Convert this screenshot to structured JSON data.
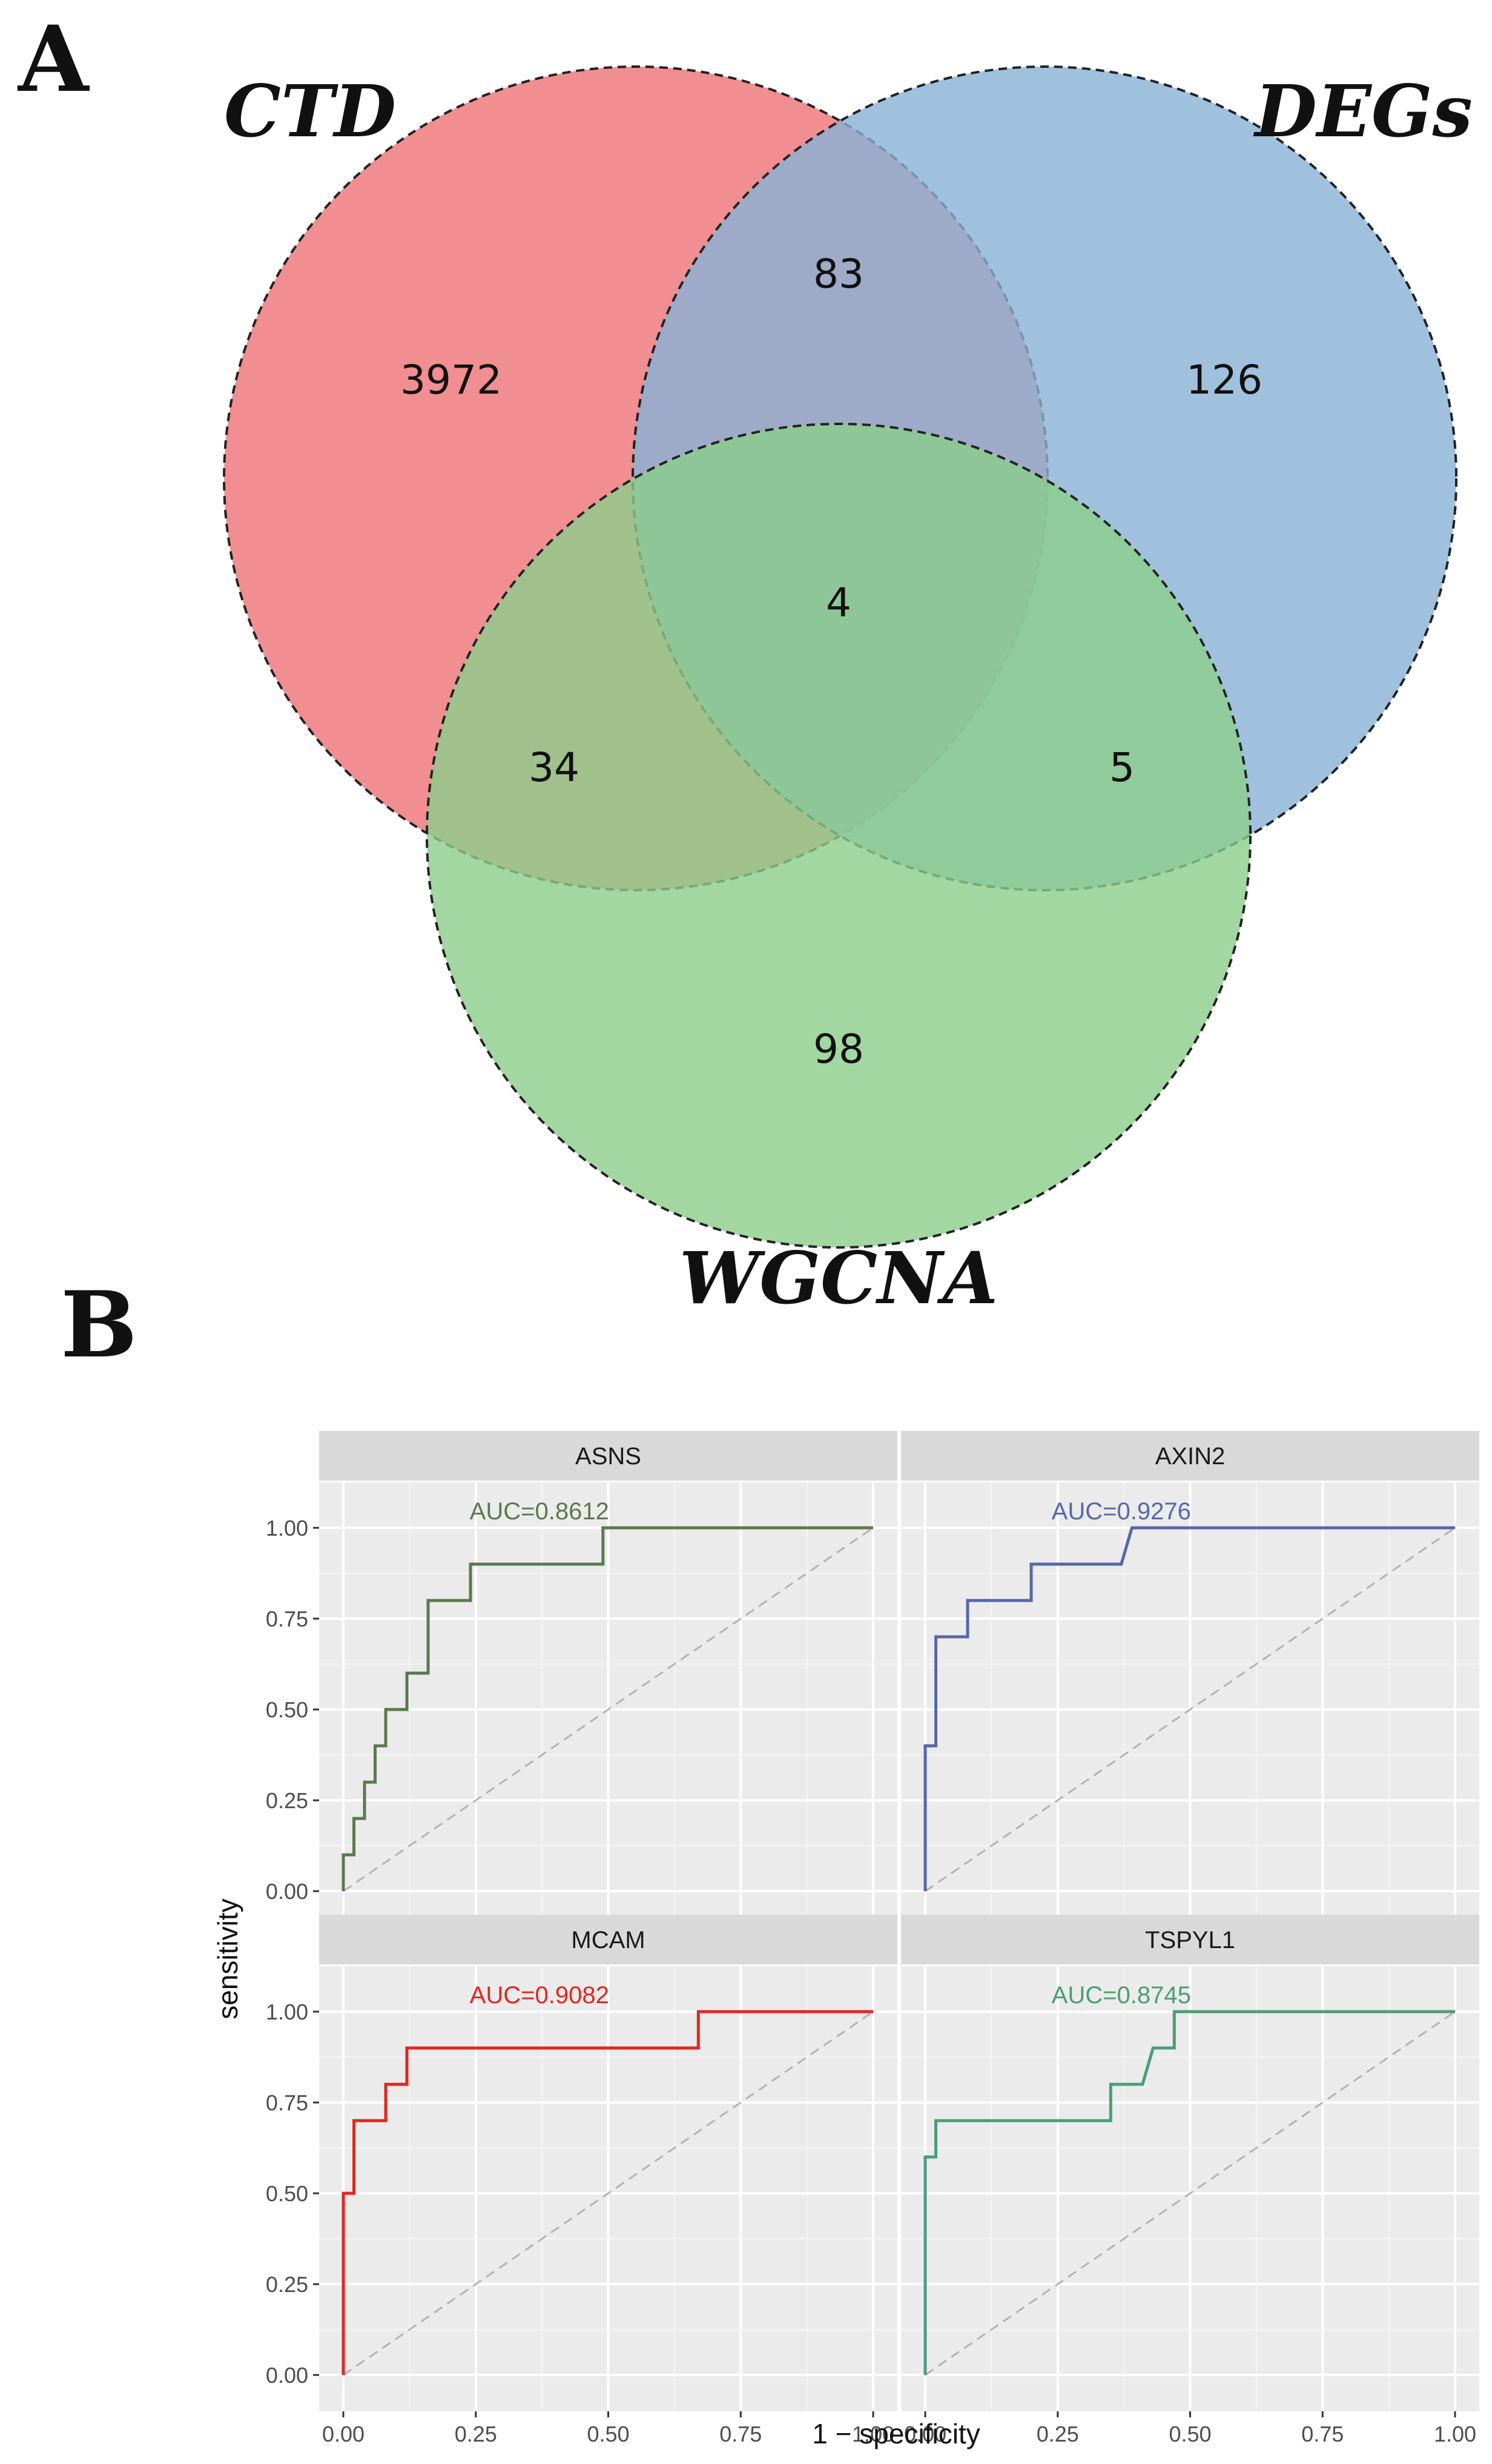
{
  "panel_labels": {
    "a": "A",
    "b": "B"
  },
  "chart_data": [
    {
      "type": "venn",
      "sets": [
        {
          "name": "CTD",
          "color": "#ee7276"
        },
        {
          "name": "DEGs",
          "color": "#88b2d6"
        },
        {
          "name": "WGCNA",
          "color": "#8ccd8b"
        }
      ],
      "regions": [
        {
          "sets": [
            "CTD"
          ],
          "count": "3972"
        },
        {
          "sets": [
            "CTD",
            "DEGs"
          ],
          "count": "83"
        },
        {
          "sets": [
            "DEGs"
          ],
          "count": "126"
        },
        {
          "sets": [
            "CTD",
            "DEGs",
            "WGCNA"
          ],
          "count": "4"
        },
        {
          "sets": [
            "CTD",
            "WGCNA"
          ],
          "count": "34"
        },
        {
          "sets": [
            "DEGs",
            "WGCNA"
          ],
          "count": "5"
        },
        {
          "sets": [
            "WGCNA"
          ],
          "count": "98"
        }
      ]
    },
    {
      "type": "line",
      "subtype": "roc-facets",
      "xlabel": "1 − specificity",
      "ylabel": "sensitivity",
      "xlim": [
        0,
        1
      ],
      "ylim": [
        0,
        1
      ],
      "xticks": [
        "0.00",
        "0.25",
        "0.50",
        "0.75",
        "1.00"
      ],
      "yticks": [
        "0.00",
        "0.25",
        "0.50",
        "0.75",
        "1.00"
      ],
      "reference_line": "diagonal dashed",
      "facets": [
        {
          "name": "ASNS",
          "auc": "AUC=0.8612",
          "color": "#5a7a4e",
          "points": [
            [
              0,
              0
            ],
            [
              0,
              0.1
            ],
            [
              0.02,
              0.1
            ],
            [
              0.02,
              0.2
            ],
            [
              0.04,
              0.2
            ],
            [
              0.04,
              0.3
            ],
            [
              0.06,
              0.3
            ],
            [
              0.06,
              0.4
            ],
            [
              0.08,
              0.4
            ],
            [
              0.08,
              0.5
            ],
            [
              0.12,
              0.5
            ],
            [
              0.12,
              0.6
            ],
            [
              0.16,
              0.6
            ],
            [
              0.16,
              0.8
            ],
            [
              0.24,
              0.8
            ],
            [
              0.24,
              0.9
            ],
            [
              0.49,
              0.9
            ],
            [
              0.49,
              1.0
            ],
            [
              1,
              1
            ]
          ]
        },
        {
          "name": "AXIN2",
          "auc": "AUC=0.9276",
          "color": "#5568a8",
          "points": [
            [
              0,
              0
            ],
            [
              0,
              0.4
            ],
            [
              0.02,
              0.4
            ],
            [
              0.02,
              0.7
            ],
            [
              0.08,
              0.7
            ],
            [
              0.08,
              0.8
            ],
            [
              0.2,
              0.8
            ],
            [
              0.2,
              0.9
            ],
            [
              0.37,
              0.9
            ],
            [
              0.39,
              1.0
            ],
            [
              1,
              1
            ]
          ]
        },
        {
          "name": "MCAM",
          "auc": "AUC=0.9082",
          "color": "#e2261f",
          "points": [
            [
              0,
              0
            ],
            [
              0,
              0.5
            ],
            [
              0.02,
              0.5
            ],
            [
              0.02,
              0.7
            ],
            [
              0.08,
              0.7
            ],
            [
              0.08,
              0.8
            ],
            [
              0.12,
              0.8
            ],
            [
              0.12,
              0.9
            ],
            [
              0.67,
              0.9
            ],
            [
              0.67,
              1.0
            ],
            [
              1,
              1
            ]
          ]
        },
        {
          "name": "TSPYL1",
          "auc": "AUC=0.8745",
          "color": "#4a9e76",
          "points": [
            [
              0,
              0
            ],
            [
              0,
              0.6
            ],
            [
              0.02,
              0.6
            ],
            [
              0.02,
              0.7
            ],
            [
              0.35,
              0.7
            ],
            [
              0.35,
              0.8
            ],
            [
              0.41,
              0.8
            ],
            [
              0.43,
              0.9
            ],
            [
              0.47,
              0.9
            ],
            [
              0.47,
              1.0
            ],
            [
              1,
              1
            ]
          ]
        }
      ]
    }
  ]
}
